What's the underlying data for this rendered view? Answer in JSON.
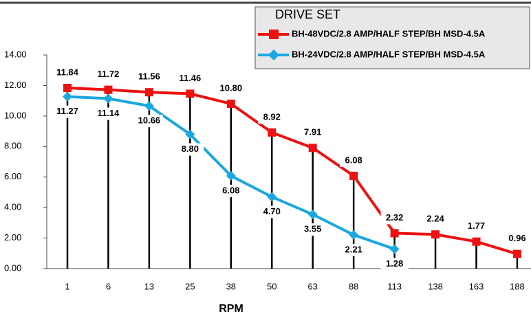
{
  "chart_data": {
    "type": "line",
    "legend_title": "DRIVE SET",
    "x_label": "RPM",
    "categories": [
      "1",
      "6",
      "13",
      "25",
      "38",
      "50",
      "63",
      "88",
      "113",
      "138",
      "163",
      "188"
    ],
    "series": [
      {
        "name": "BH-48VDC/2.8 AMP/HALF STEP/BH MSD-4.5A",
        "color": "#ee1111",
        "marker": "square",
        "values": [
          11.84,
          11.72,
          11.56,
          11.46,
          10.8,
          8.92,
          7.91,
          6.08,
          2.32,
          2.24,
          1.77,
          0.96
        ],
        "value_labels": [
          "11.84",
          "11.72",
          "11.56",
          "11.46",
          "10.80",
          "8.92",
          "7.91",
          "6.08",
          "2.32",
          "2.24",
          "1.77",
          "0.96"
        ]
      },
      {
        "name": "BH-24VDC/2.8 AMP/HALF STEP/BH MSD-4.5A",
        "color": "#1aa8e0",
        "marker": "diamond",
        "values": [
          11.27,
          11.14,
          10.66,
          8.8,
          6.08,
          4.7,
          3.55,
          2.21,
          1.28,
          null,
          null,
          null
        ],
        "value_labels": [
          "11.27",
          "11.14",
          "10.66",
          "8.80",
          "6.08",
          "4.70",
          "3.55",
          "2.21",
          "1.28",
          null,
          null,
          null
        ]
      }
    ],
    "ylim": [
      0,
      14
    ],
    "yticks": [
      {
        "value": 0,
        "label": "0.00"
      },
      {
        "value": 2,
        "label": "2.00"
      },
      {
        "value": 4,
        "label": "4.00"
      },
      {
        "value": 6,
        "label": "6.00"
      },
      {
        "value": 8,
        "label": "8.00"
      },
      {
        "value": 10,
        "label": "10.00"
      },
      {
        "value": 12,
        "label": "12.00"
      },
      {
        "value": 14,
        "label": "14.00"
      }
    ],
    "drop_lines": true
  }
}
